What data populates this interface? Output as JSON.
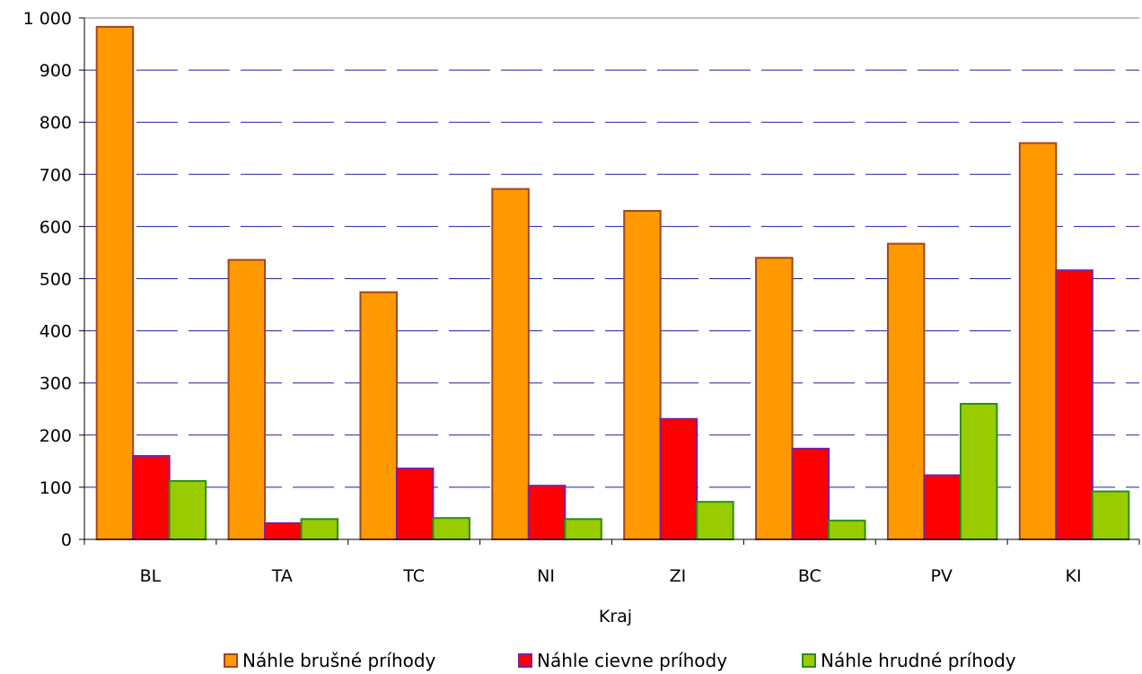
{
  "chart_data": {
    "type": "bar",
    "categories": [
      "BL",
      "TA",
      "TC",
      "NI",
      "ZI",
      "BC",
      "PV",
      "KI"
    ],
    "series": [
      {
        "name": "Náhle brušné príhody",
        "values": [
          983,
          536,
          474,
          672,
          630,
          540,
          567,
          760
        ],
        "color": "#FF9900",
        "stroke": "#A0461E"
      },
      {
        "name": "Náhle cievne príhody",
        "values": [
          160,
          31,
          136,
          103,
          231,
          174,
          123,
          516
        ],
        "color": "#FF0000",
        "stroke": "#7B1FA2"
      },
      {
        "name": "Náhle hrudné príhody",
        "values": [
          112,
          39,
          41,
          39,
          72,
          36,
          260,
          92
        ],
        "color": "#99CC00",
        "stroke": "#2E8B1E"
      }
    ],
    "xlabel": "Kraj",
    "ylabel": "",
    "ylim": [
      0,
      1000
    ],
    "yticks": [
      0,
      100,
      200,
      300,
      400,
      500,
      600,
      700,
      800,
      900,
      1000
    ],
    "ytick_labels": [
      "0",
      "100",
      "200",
      "300",
      "400",
      "500",
      "600",
      "700",
      "800",
      "900",
      "1 000"
    ],
    "grid": true,
    "grid_color": "#1F1FA8",
    "legend_position": "bottom"
  }
}
